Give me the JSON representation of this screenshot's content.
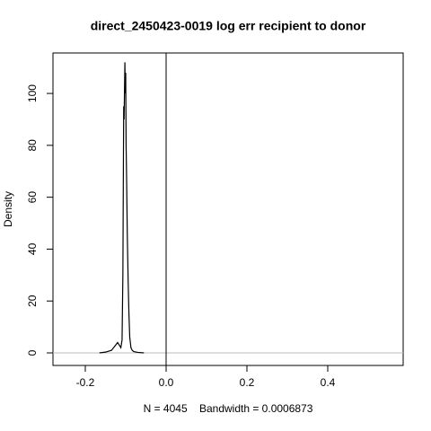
{
  "chart_data": {
    "type": "line",
    "title": "direct_2450423-0019 log err recipient to donor",
    "xlabel": "N = 4045    Bandwidth = 0.0006873",
    "ylabel": "Density",
    "x": [
      -0.165,
      -0.15,
      -0.135,
      -0.125,
      -0.12,
      -0.116,
      -0.112,
      -0.109,
      -0.107,
      -0.105,
      -0.104,
      -0.102,
      -0.101,
      -0.1,
      -0.099,
      -0.098,
      -0.096,
      -0.094,
      -0.092,
      -0.09,
      -0.087,
      -0.084,
      -0.08,
      -0.07,
      -0.055
    ],
    "series": [
      {
        "color": "#000000",
        "values": [
          0,
          0.3,
          1,
          3,
          4,
          3,
          2,
          5,
          30,
          95,
          90,
          112,
          100,
          108,
          80,
          70,
          45,
          28,
          15,
          6,
          2,
          1,
          0.5,
          0.2,
          0
        ]
      }
    ],
    "xlim": [
      -0.28,
      0.5867
    ],
    "ylim": [
      -4.84,
      115.6
    ],
    "xticks": [
      -0.2,
      {
        "value": 0,
        "label": "0.0"
      },
      0.2,
      0.4
    ],
    "yticks": [
      0,
      20,
      40,
      60,
      80,
      100
    ],
    "vline": 0,
    "hline": 0,
    "hline_color": "#bebebe"
  }
}
